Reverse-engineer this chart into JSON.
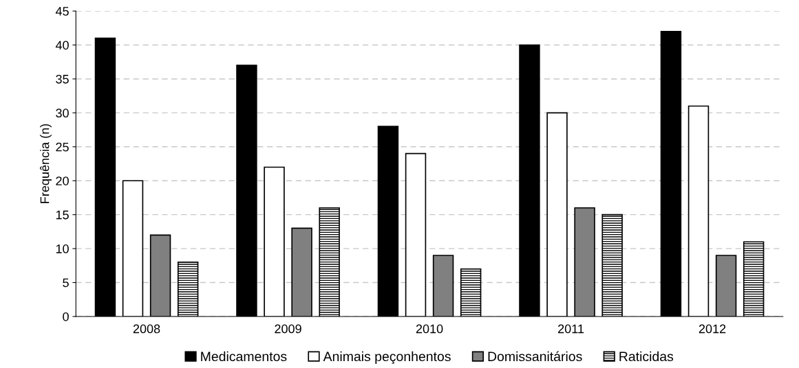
{
  "chart_data": {
    "type": "bar",
    "ylabel": "Frequência (n)",
    "categories": [
      "2008",
      "2009",
      "2010",
      "2011",
      "2012"
    ],
    "series": [
      {
        "name": "Medicamentos",
        "color": "#000000",
        "values": [
          41,
          37,
          28,
          40,
          42
        ]
      },
      {
        "name": "Animais peçonhentos",
        "color": "#ffffff",
        "values": [
          20,
          22,
          24,
          30,
          31
        ]
      },
      {
        "name": "Domissanitários",
        "color": "#808080",
        "values": [
          12,
          13,
          9,
          16,
          9
        ]
      },
      {
        "name": "Raticidas",
        "color": "#000000",
        "values": [
          8,
          16,
          7,
          15,
          11
        ]
      }
    ],
    "ylim": [
      0,
      45
    ],
    "yticks": [
      0,
      5,
      10,
      15,
      20,
      25,
      30,
      35,
      40,
      45
    ],
    "grid": "y",
    "legend": "bottom"
  }
}
